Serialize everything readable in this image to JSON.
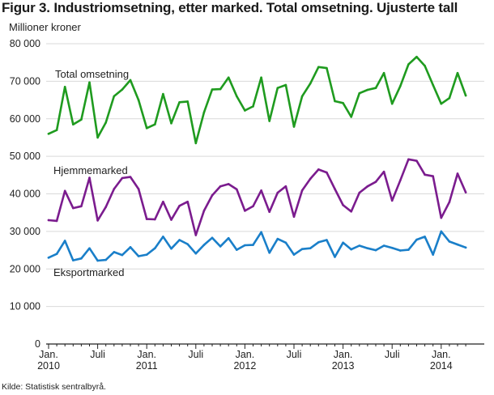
{
  "chart_data": {
    "type": "line",
    "title": "Figur 3. Industriomsetning, etter marked. Total omsetning. Ujusterte tall",
    "ylabel": "Millioner kroner",
    "xlabel": "",
    "ylim": [
      0,
      80000
    ],
    "yticks": [
      {
        "value": 0,
        "label": "0"
      },
      {
        "value": 10000,
        "label": "10 000"
      },
      {
        "value": 20000,
        "label": "20 000"
      },
      {
        "value": 30000,
        "label": "30 000"
      },
      {
        "value": 40000,
        "label": "40 000"
      },
      {
        "value": 50000,
        "label": "50 000"
      },
      {
        "value": 60000,
        "label": "60 000"
      },
      {
        "value": 70000,
        "label": "70 000"
      },
      {
        "value": 80000,
        "label": "80 000"
      }
    ],
    "xticks": [
      {
        "index": 0,
        "line1": "Jan.",
        "line2": "2010"
      },
      {
        "index": 6,
        "line1": "Juli",
        "line2": ""
      },
      {
        "index": 12,
        "line1": "Jan.",
        "line2": "2011"
      },
      {
        "index": 18,
        "line1": "Juli",
        "line2": ""
      },
      {
        "index": 24,
        "line1": "Jan.",
        "line2": "2012"
      },
      {
        "index": 30,
        "line1": "Juli",
        "line2": ""
      },
      {
        "index": 36,
        "line1": "Jan.",
        "line2": "2013"
      },
      {
        "index": 42,
        "line1": "Juli",
        "line2": ""
      },
      {
        "index": 48,
        "line1": "Jan.",
        "line2": "2014"
      }
    ],
    "series": [
      {
        "name": "Total omsetning",
        "color": "#1f9b1f",
        "values": [
          56000,
          57000,
          68500,
          58500,
          59800,
          69700,
          55000,
          59000,
          66000,
          67800,
          70300,
          65000,
          57500,
          58500,
          66600,
          58800,
          64400,
          64600,
          53500,
          61700,
          67800,
          67900,
          71000,
          66000,
          62200,
          63300,
          71000,
          59400,
          68200,
          69000,
          57900,
          66000,
          69400,
          73800,
          73500,
          64700,
          64200,
          60500,
          66800,
          67700,
          68200,
          72200,
          64000,
          68700,
          74500,
          76500,
          74100,
          69000,
          64000,
          65500,
          72200,
          66200
        ]
      },
      {
        "name": "Hjemmemarked",
        "color": "#7b1c8e",
        "values": [
          33000,
          32800,
          40800,
          36200,
          36700,
          44300,
          32900,
          36500,
          41300,
          44200,
          44500,
          41300,
          33300,
          33200,
          37900,
          33100,
          36800,
          37900,
          29000,
          35500,
          39600,
          42000,
          42600,
          41200,
          35500,
          36700,
          40900,
          35200,
          40300,
          42000,
          33900,
          40900,
          44000,
          46500,
          45700,
          41300,
          37000,
          35300,
          40300,
          42000,
          43200,
          45900,
          38200,
          43600,
          49200,
          48800,
          45100,
          44700,
          33600,
          37800,
          45400,
          40400
        ]
      },
      {
        "name": "Eksportmarked",
        "color": "#1a7fc9",
        "values": [
          23000,
          24000,
          27500,
          22300,
          22800,
          25500,
          22200,
          22400,
          24500,
          23700,
          25800,
          23400,
          23800,
          25500,
          28600,
          25400,
          27700,
          26600,
          24100,
          26400,
          28300,
          26000,
          28200,
          25100,
          26300,
          26400,
          29800,
          24300,
          28000,
          27000,
          23800,
          25300,
          25500,
          27100,
          27700,
          23200,
          27000,
          25200,
          26200,
          25500,
          25000,
          26200,
          25600,
          24900,
          25100,
          27800,
          28600,
          23800,
          30000,
          27300,
          26500,
          25700
        ]
      }
    ],
    "annotations": [
      "Total omsetning",
      "Hjemmemarked",
      "Eksportmarked"
    ],
    "grid": true
  },
  "source": "Kilde: Statistisk sentralbyrå."
}
